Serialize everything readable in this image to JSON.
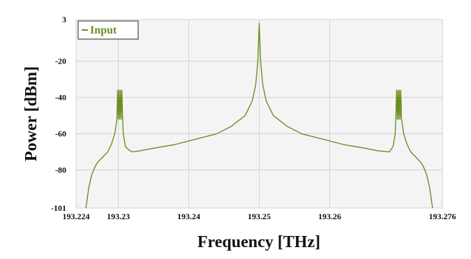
{
  "chart_data": {
    "type": "line",
    "xlabel": "Frequency [THz]",
    "ylabel": "Power [dBm]",
    "xlim": [
      193.224,
      193.276
    ],
    "ylim": [
      -101,
      3
    ],
    "x_ticks": [
      "193.224",
      "193.23",
      "193.24",
      "193.25",
      "193.26",
      "193.276"
    ],
    "x_tick_values": [
      193.224,
      193.23,
      193.24,
      193.25,
      193.26,
      193.276
    ],
    "y_ticks": [
      "3",
      "-20",
      "-40",
      "-60",
      "-80",
      "-101"
    ],
    "y_tick_values": [
      3,
      -20,
      -40,
      -60,
      -80,
      -101
    ],
    "grid": true,
    "legend_position": "top-left",
    "series": [
      {
        "name": "Input",
        "color": "#6b8e23",
        "x": [
          193.2254,
          193.2258,
          193.2262,
          193.2266,
          193.227,
          193.2275,
          193.228,
          193.2285,
          193.229,
          193.2295,
          193.2298,
          193.2299,
          193.23,
          193.2301,
          193.2302,
          193.2303,
          193.2304,
          193.2305,
          193.2306,
          193.2307,
          193.231,
          193.2315,
          193.232,
          193.233,
          193.235,
          193.238,
          193.241,
          193.244,
          193.246,
          193.248,
          193.249,
          193.2495,
          193.2498,
          193.25,
          193.2502,
          193.2505,
          193.251,
          193.252,
          193.254,
          193.256,
          193.259,
          193.262,
          193.265,
          193.267,
          193.2685,
          193.269,
          193.2693,
          193.2694,
          193.2695,
          193.2696,
          193.2697,
          193.2698,
          193.2699,
          193.27,
          193.2701,
          193.2702,
          193.2705,
          193.271,
          193.2715,
          193.272,
          193.2725,
          193.273,
          193.2734,
          193.2738,
          193.2742,
          193.2746
        ],
        "values": [
          -101,
          -90,
          -83,
          -79,
          -76,
          -74,
          -72,
          -70,
          -66,
          -60,
          -52,
          -36,
          -52,
          -36,
          -52,
          -36,
          -52,
          -36,
          -50,
          -60,
          -67,
          -69,
          -70,
          -69.5,
          -68,
          -66,
          -63,
          -60,
          -56,
          -50,
          -42,
          -33,
          -20,
          1,
          -20,
          -33,
          -42,
          -50,
          -56,
          -60,
          -63,
          -66,
          -68,
          -69.5,
          -70,
          -67,
          -60,
          -50,
          -36,
          -52,
          -36,
          -52,
          -36,
          -52,
          -36,
          -52,
          -60,
          -66,
          -70,
          -72,
          -74,
          -76,
          -79,
          -83,
          -90,
          -101
        ]
      }
    ]
  }
}
